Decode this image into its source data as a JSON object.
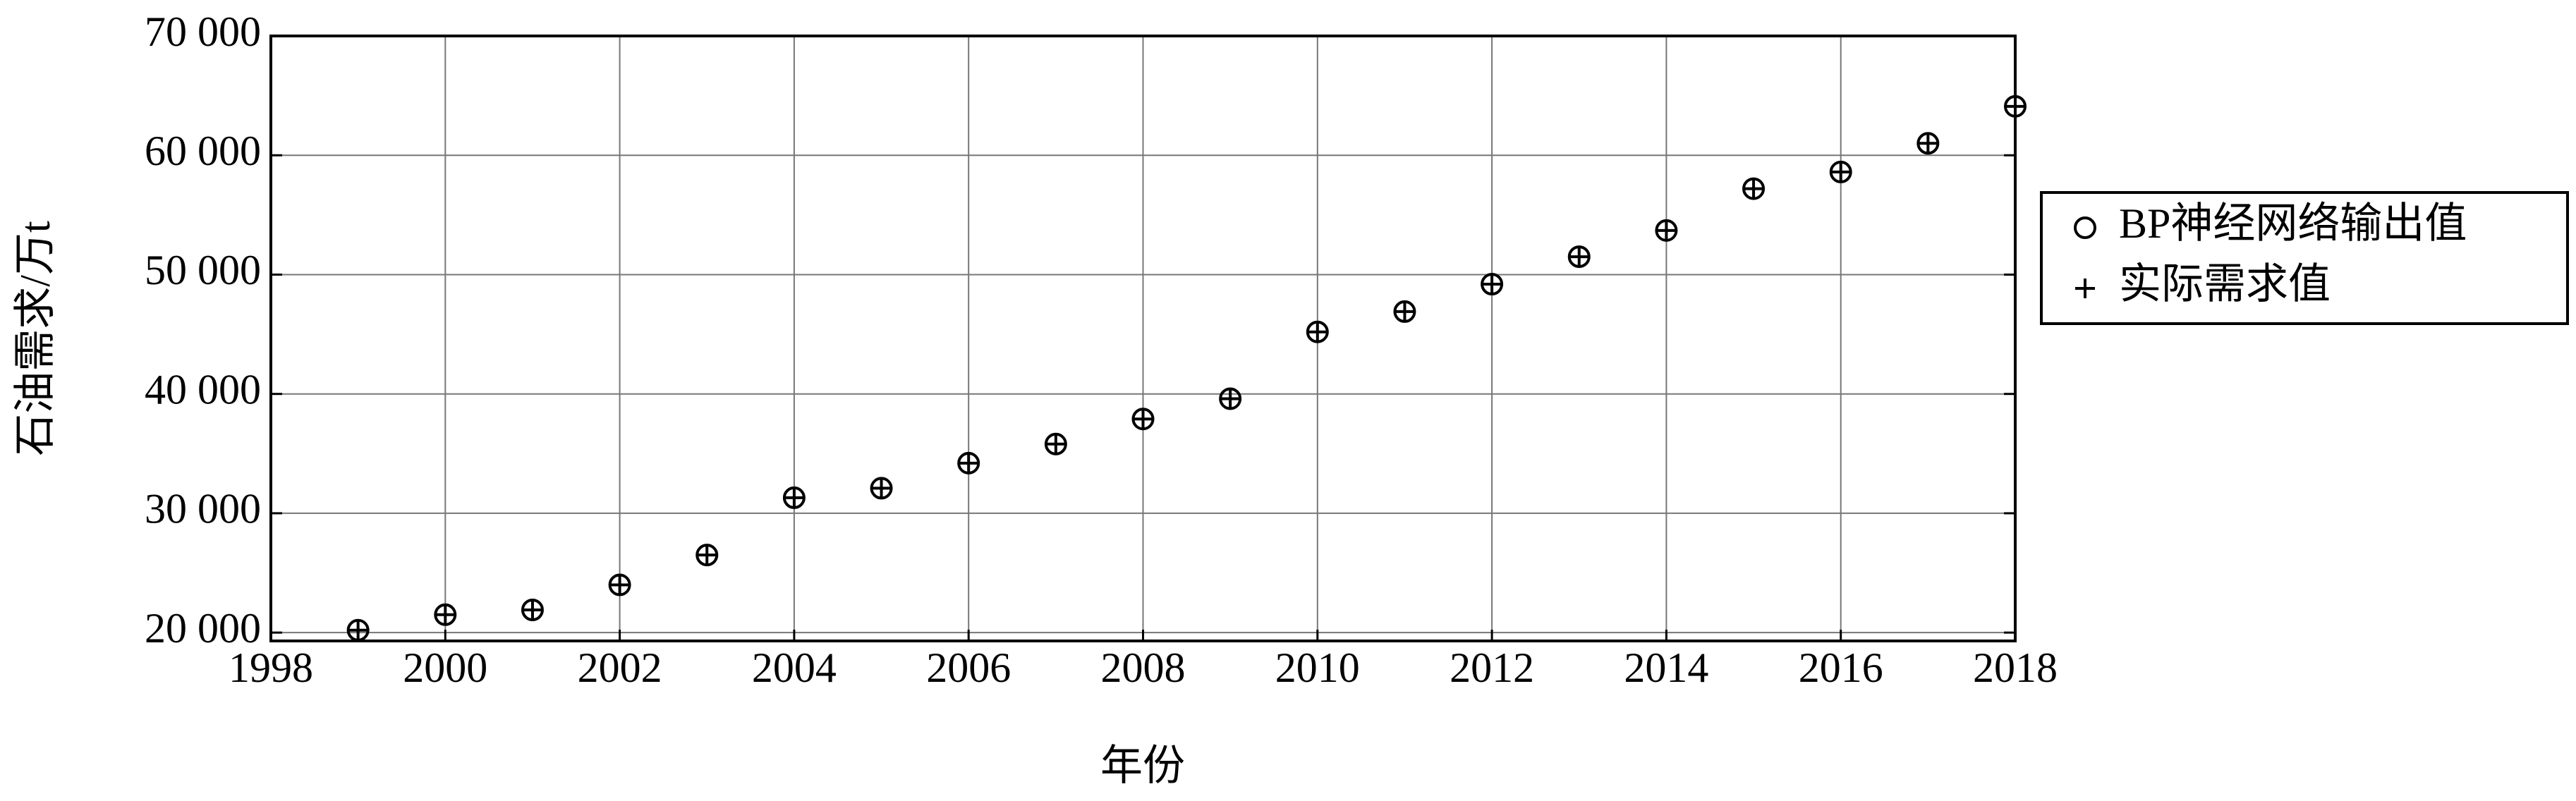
{
  "chart_data": {
    "type": "scatter",
    "x_label": "年份",
    "y_label": "石油需求/万t",
    "x": [
      1999,
      2000,
      2001,
      2002,
      2003,
      2004,
      2005,
      2006,
      2007,
      2008,
      2009,
      2010,
      2011,
      2012,
      2013,
      2014,
      2015,
      2016,
      2017,
      2018
    ],
    "series": [
      {
        "name": "BP神经网络输出值",
        "color": "#000000",
        "marker": "circle",
        "values": [
          20200,
          21500,
          21900,
          24000,
          26500,
          31300,
          32100,
          34200,
          35800,
          37900,
          39600,
          45200,
          46900,
          49200,
          51500,
          53700,
          57200,
          58600,
          61000,
          64100
        ]
      },
      {
        "name": "实际需求值",
        "color": "#000000",
        "marker": "plus",
        "values": [
          20200,
          21500,
          21900,
          24000,
          26500,
          31300,
          32100,
          34200,
          35800,
          37900,
          39600,
          45200,
          46900,
          49200,
          51500,
          53700,
          57200,
          58600,
          61000,
          64100
        ]
      }
    ],
    "xlim": [
      1998,
      2018
    ],
    "xticks": [
      1998,
      2000,
      2002,
      2004,
      2006,
      2008,
      2010,
      2012,
      2014,
      2016,
      2018
    ],
    "ylim": [
      19300,
      70000
    ],
    "yticks": [
      {
        "value": 20000,
        "label": "20 000"
      },
      {
        "value": 30000,
        "label": "30 000"
      },
      {
        "value": 40000,
        "label": "40 000"
      },
      {
        "value": 50000,
        "label": "50 000"
      },
      {
        "value": 60000,
        "label": "60 000"
      },
      {
        "value": 70000,
        "label": "70 000"
      }
    ],
    "grid": true,
    "legend": "outside right"
  }
}
